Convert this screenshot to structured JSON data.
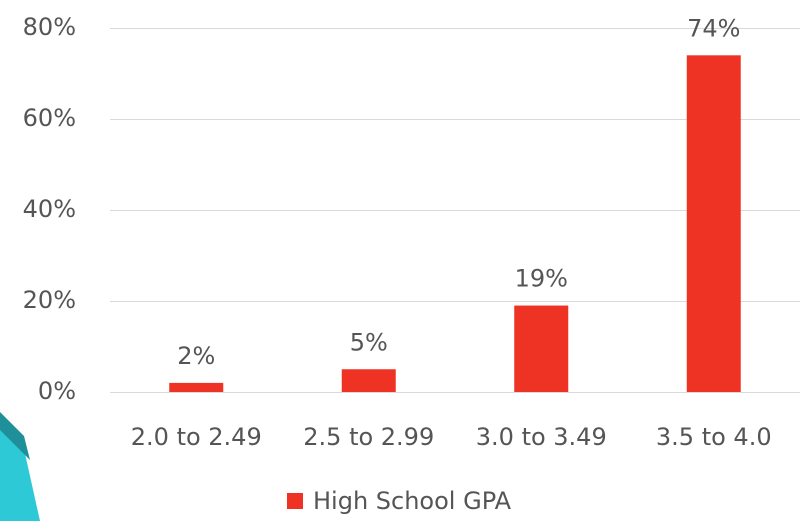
{
  "chart_data": {
    "type": "bar",
    "categories": [
      "2.0 to 2.49",
      "2.5 to 2.99",
      "3.0 to 3.49",
      "3.5 to 4.0"
    ],
    "series": [
      {
        "name": "High School GPA",
        "color": "#ee3224",
        "values": [
          2,
          5,
          19,
          74
        ],
        "value_labels": [
          "2%",
          "5%",
          "19%",
          "74%"
        ]
      }
    ],
    "ylim": [
      0,
      80
    ],
    "yticks": [
      {
        "value": 0,
        "label": "0%"
      },
      {
        "value": 20,
        "label": "20%"
      },
      {
        "value": 40,
        "label": "40%"
      },
      {
        "value": 60,
        "label": "60%"
      },
      {
        "value": 80,
        "label": "80%"
      }
    ],
    "grid": true,
    "legend": "bottom"
  }
}
